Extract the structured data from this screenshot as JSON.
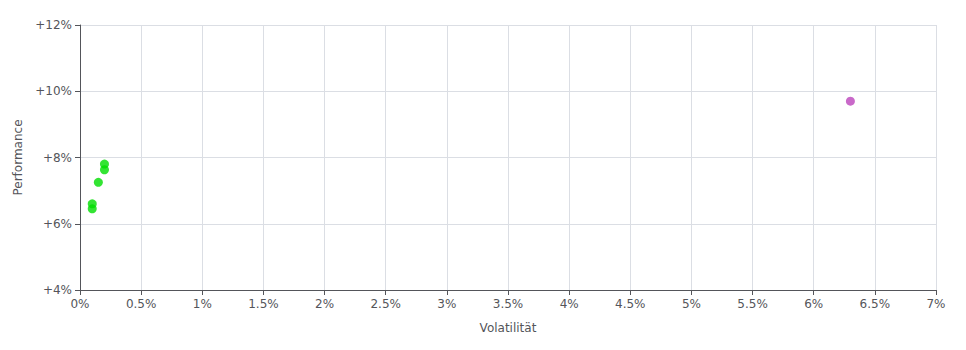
{
  "chart_data": {
    "type": "scatter",
    "xlabel": "Volatilität",
    "ylabel": "Performance",
    "xlim": [
      0.0,
      0.07
    ],
    "ylim": [
      0.04,
      0.12
    ],
    "xticks": [
      {
        "value": 0.0,
        "label": "0%"
      },
      {
        "value": 0.005,
        "label": "0.5%"
      },
      {
        "value": 0.01,
        "label": "1%"
      },
      {
        "value": 0.015,
        "label": "1.5%"
      },
      {
        "value": 0.02,
        "label": "2%"
      },
      {
        "value": 0.025,
        "label": "2.5%"
      },
      {
        "value": 0.03,
        "label": "3%"
      },
      {
        "value": 0.035,
        "label": "3.5%"
      },
      {
        "value": 0.04,
        "label": "4%"
      },
      {
        "value": 0.045,
        "label": "4.5%"
      },
      {
        "value": 0.05,
        "label": "5%"
      },
      {
        "value": 0.055,
        "label": "5.5%"
      },
      {
        "value": 0.06,
        "label": "6%"
      },
      {
        "value": 0.065,
        "label": "6.5%"
      },
      {
        "value": 0.07,
        "label": "7%"
      }
    ],
    "yticks": [
      {
        "value": 0.04,
        "label": "+4%"
      },
      {
        "value": 0.06,
        "label": "+6%"
      },
      {
        "value": 0.08,
        "label": "+8%"
      },
      {
        "value": 0.1,
        "label": "+10%"
      },
      {
        "value": 0.12,
        "label": "+12%"
      }
    ],
    "grid": true,
    "series": [
      {
        "color": "#00dd00",
        "x": [
          0.002,
          0.002,
          0.0015,
          0.001,
          0.001
        ],
        "values": [
          0.078,
          0.0763,
          0.0725,
          0.066,
          0.0645
        ]
      },
      {
        "color": "#bb44bb",
        "x": [
          0.063
        ],
        "values": [
          0.097
        ]
      }
    ]
  }
}
